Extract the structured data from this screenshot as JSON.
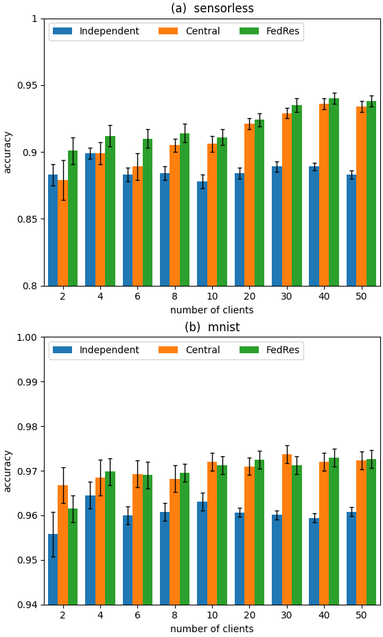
{
  "chart_data": [
    {
      "type": "bar",
      "title": "(a)  sensorless",
      "x_label": "number of clients",
      "y_label": "accuracy",
      "categories": [
        "2",
        "4",
        "6",
        "8",
        "10",
        "20",
        "30",
        "40",
        "50"
      ],
      "series": [
        {
          "name": "Independent",
          "values": [
            0.883,
            0.899,
            0.883,
            0.884,
            0.878,
            0.884,
            0.889,
            0.889,
            0.883
          ],
          "errors": [
            0.008,
            0.004,
            0.005,
            0.005,
            0.005,
            0.004,
            0.004,
            0.003,
            0.003
          ]
        },
        {
          "name": "Central",
          "values": [
            0.879,
            0.899,
            0.889,
            0.905,
            0.906,
            0.921,
            0.929,
            0.936,
            0.934
          ],
          "errors": [
            0.015,
            0.008,
            0.01,
            0.005,
            0.006,
            0.004,
            0.004,
            0.004,
            0.004
          ]
        },
        {
          "name": "FedRes",
          "values": [
            0.901,
            0.912,
            0.91,
            0.914,
            0.911,
            0.924,
            0.935,
            0.94,
            0.938
          ],
          "errors": [
            0.01,
            0.008,
            0.007,
            0.007,
            0.006,
            0.005,
            0.005,
            0.004,
            0.004
          ]
        }
      ],
      "ylim": [
        0.8,
        1.0
      ],
      "yticks": [
        0.8,
        0.85,
        0.9,
        0.95,
        {
          "value": 1.0,
          "label": "1"
        }
      ],
      "legend": "upper left",
      "grid": false
    },
    {
      "type": "bar",
      "title": "(b)  mnist",
      "x_label": "number of clients",
      "y_label": "accuracy",
      "categories": [
        "2",
        "4",
        "6",
        "8",
        "10",
        "20",
        "30",
        "40",
        "50"
      ],
      "series": [
        {
          "name": "Independent",
          "values": [
            0.9558,
            0.9645,
            0.96,
            0.9607,
            0.963,
            0.9606,
            0.9601,
            0.9594,
            0.9608
          ],
          "errors": [
            0.005,
            0.003,
            0.002,
            0.002,
            0.002,
            0.001,
            0.001,
            0.001,
            0.001
          ]
        },
        {
          "name": "Central",
          "values": [
            0.9668,
            0.9685,
            0.9693,
            0.9682,
            0.972,
            0.971,
            0.9737,
            0.972,
            0.9723
          ],
          "errors": [
            0.004,
            0.004,
            0.003,
            0.003,
            0.002,
            0.002,
            0.002,
            0.002,
            0.002
          ]
        },
        {
          "name": "FedRes",
          "values": [
            0.9615,
            0.9698,
            0.969,
            0.9695,
            0.9713,
            0.9724,
            0.9713,
            0.973,
            0.9726
          ],
          "errors": [
            0.003,
            0.003,
            0.003,
            0.002,
            0.002,
            0.002,
            0.002,
            0.002,
            0.002
          ]
        }
      ],
      "ylim": [
        0.94,
        1.0
      ],
      "yticks": [
        0.94,
        0.95,
        0.96,
        0.97,
        0.98,
        0.99,
        {
          "value": 1.0,
          "label": "1.00"
        }
      ],
      "legend": "upper left",
      "grid": false
    }
  ]
}
